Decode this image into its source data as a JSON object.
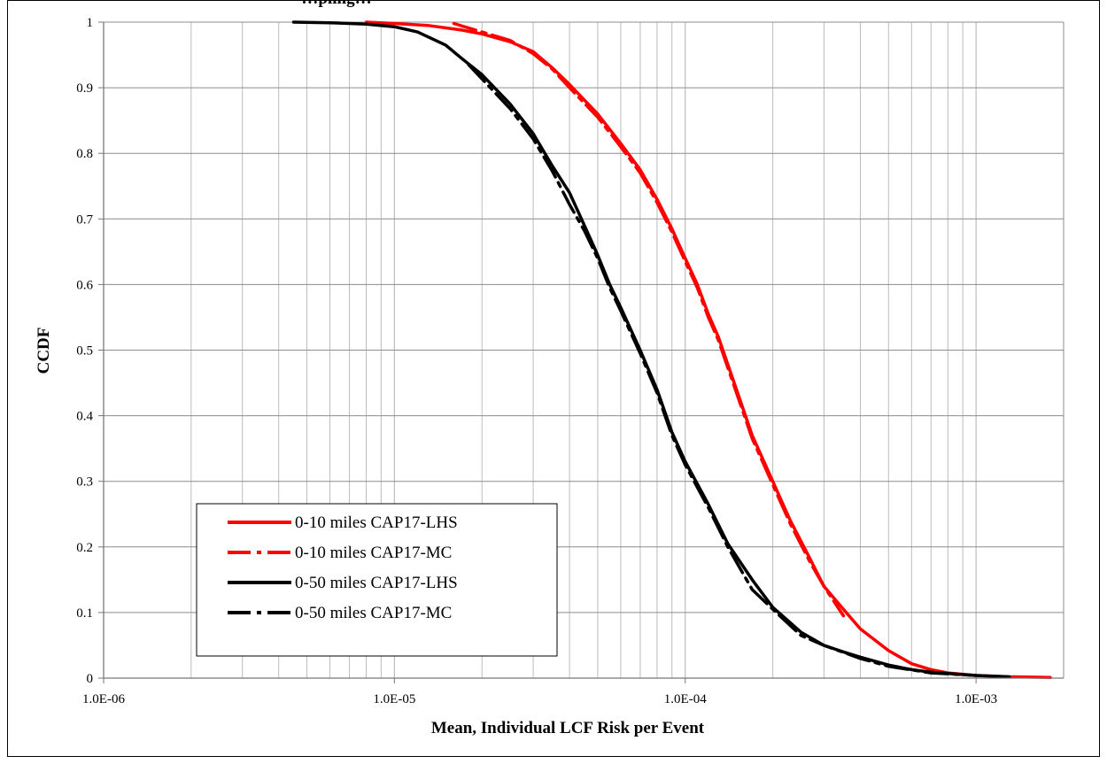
{
  "chart_data": {
    "type": "line",
    "title": "…pling…",
    "xlabel": "Mean, Individual LCF Risk per Event",
    "ylabel": "CCDF",
    "x_scale": "log",
    "xlim": [
      1e-06,
      0.002
    ],
    "ylim": [
      0,
      1
    ],
    "x_ticks": [
      1e-06,
      1e-05,
      0.0001,
      0.001
    ],
    "x_tick_labels": [
      "1.0E-06",
      "1.0E-05",
      "1.0E-04",
      "1.0E-03"
    ],
    "y_ticks": [
      0,
      0.1,
      0.2,
      0.3,
      0.4,
      0.5,
      0.6,
      0.7,
      0.8,
      0.9,
      1
    ],
    "y_tick_labels": [
      "0",
      "0.1",
      "0.2",
      "0.3",
      "0.4",
      "0.5",
      "0.6",
      "0.7",
      "0.8",
      "0.9",
      "1"
    ],
    "grid": "major horizontal + minor vertical (log decades)",
    "legend_position": "lower-left",
    "series": [
      {
        "name": "0-10 miles CAP17-LHS",
        "color": "#ff0000",
        "style": "solid",
        "points": [
          [
            8e-06,
            1.0
          ],
          [
            1e-05,
            0.998
          ],
          [
            1.3e-05,
            0.995
          ],
          [
            1.7e-05,
            0.988
          ],
          [
            2e-05,
            0.982
          ],
          [
            2.5e-05,
            0.97
          ],
          [
            3e-05,
            0.955
          ],
          [
            3.5e-05,
            0.93
          ],
          [
            4e-05,
            0.905
          ],
          [
            5e-05,
            0.86
          ],
          [
            6e-05,
            0.815
          ],
          [
            7e-05,
            0.775
          ],
          [
            8e-05,
            0.73
          ],
          [
            9e-05,
            0.685
          ],
          [
            0.0001,
            0.64
          ],
          [
            0.00011,
            0.6
          ],
          [
            0.00012,
            0.555
          ],
          [
            0.00013,
            0.52
          ],
          [
            0.00015,
            0.44
          ],
          [
            0.00017,
            0.37
          ],
          [
            0.0002,
            0.3
          ],
          [
            0.00023,
            0.24
          ],
          [
            0.00027,
            0.18
          ],
          [
            0.0003,
            0.14
          ],
          [
            0.00035,
            0.105
          ],
          [
            0.0004,
            0.075
          ],
          [
            0.0005,
            0.042
          ],
          [
            0.0006,
            0.022
          ],
          [
            0.0007,
            0.013
          ],
          [
            0.0008,
            0.008
          ],
          [
            0.001,
            0.004
          ],
          [
            0.0013,
            0.002
          ],
          [
            0.0018,
            0.001
          ]
        ]
      },
      {
        "name": "0-10 miles CAP17-MC",
        "color": "#ff0000",
        "style": "dashed",
        "points": [
          [
            1.6e-05,
            0.998
          ],
          [
            2e-05,
            0.985
          ],
          [
            2.5e-05,
            0.972
          ],
          [
            3e-05,
            0.952
          ],
          [
            3.5e-05,
            0.928
          ],
          [
            4e-05,
            0.9
          ],
          [
            5e-05,
            0.855
          ],
          [
            6e-05,
            0.81
          ],
          [
            7e-05,
            0.77
          ],
          [
            8e-05,
            0.725
          ],
          [
            9e-05,
            0.68
          ],
          [
            0.0001,
            0.635
          ],
          [
            0.00011,
            0.595
          ],
          [
            0.00012,
            0.55
          ],
          [
            0.00013,
            0.515
          ],
          [
            0.00015,
            0.435
          ],
          [
            0.00017,
            0.365
          ],
          [
            0.0002,
            0.295
          ],
          [
            0.00023,
            0.235
          ],
          [
            0.00027,
            0.175
          ],
          [
            0.0003,
            0.14
          ],
          [
            0.00035,
            0.095
          ]
        ]
      },
      {
        "name": "0-50 miles CAP17-LHS",
        "color": "#000000",
        "style": "solid",
        "points": [
          [
            4.5e-06,
            1.0
          ],
          [
            6e-06,
            0.999
          ],
          [
            8e-06,
            0.997
          ],
          [
            1e-05,
            0.993
          ],
          [
            1.2e-05,
            0.985
          ],
          [
            1.5e-05,
            0.965
          ],
          [
            1.7e-05,
            0.945
          ],
          [
            2e-05,
            0.92
          ],
          [
            2.5e-05,
            0.875
          ],
          [
            3e-05,
            0.83
          ],
          [
            3.5e-05,
            0.78
          ],
          [
            4e-05,
            0.74
          ],
          [
            4.5e-05,
            0.69
          ],
          [
            5e-05,
            0.645
          ],
          [
            5.5e-05,
            0.6
          ],
          [
            6e-05,
            0.565
          ],
          [
            7e-05,
            0.5
          ],
          [
            8e-05,
            0.44
          ],
          [
            9e-05,
            0.375
          ],
          [
            0.0001,
            0.33
          ],
          [
            0.00012,
            0.265
          ],
          [
            0.00014,
            0.205
          ],
          [
            0.00017,
            0.15
          ],
          [
            0.0002,
            0.108
          ],
          [
            0.00025,
            0.07
          ],
          [
            0.0003,
            0.05
          ],
          [
            0.00035,
            0.04
          ],
          [
            0.0004,
            0.032
          ],
          [
            0.0005,
            0.02
          ],
          [
            0.0006,
            0.013
          ],
          [
            0.0007,
            0.009
          ],
          [
            0.0008,
            0.007
          ],
          [
            0.001,
            0.004
          ],
          [
            0.0013,
            0.002
          ]
        ]
      },
      {
        "name": "0-50 miles CAP17-MC",
        "color": "#000000",
        "style": "dashed",
        "points": [
          [
            1.8e-05,
            0.935
          ],
          [
            2.5e-05,
            0.868
          ],
          [
            3e-05,
            0.822
          ],
          [
            3.5e-05,
            0.772
          ],
          [
            4e-05,
            0.722
          ],
          [
            4.5e-05,
            0.682
          ],
          [
            5e-05,
            0.64
          ],
          [
            5.5e-05,
            0.595
          ],
          [
            6e-05,
            0.56
          ],
          [
            7e-05,
            0.495
          ],
          [
            8e-05,
            0.435
          ],
          [
            9e-05,
            0.37
          ],
          [
            0.0001,
            0.325
          ],
          [
            0.00012,
            0.26
          ],
          [
            0.00014,
            0.2
          ],
          [
            0.00017,
            0.135
          ],
          [
            0.0002,
            0.105
          ],
          [
            0.00025,
            0.065
          ],
          [
            0.0003,
            0.05
          ],
          [
            0.0004,
            0.03
          ],
          [
            0.0005,
            0.018
          ],
          [
            0.0007,
            0.008
          ],
          [
            0.001,
            0.004
          ]
        ]
      }
    ]
  }
}
